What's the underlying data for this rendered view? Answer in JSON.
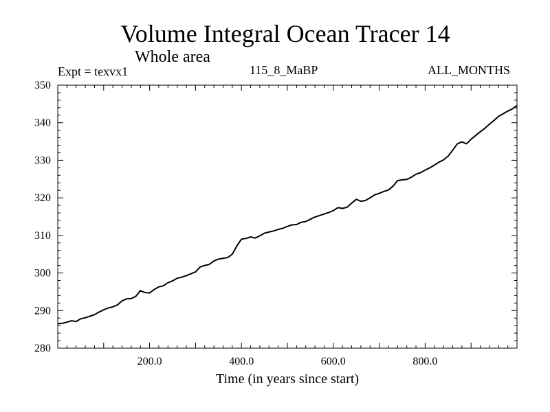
{
  "header": {
    "title": "Volume Integral Ocean Tracer 14",
    "subtitle": "Whole area",
    "experiment": "Expt = texvx1",
    "run_label": "115_8_MaBP",
    "months_label": "ALL_MONTHS"
  },
  "chart_data": {
    "type": "line",
    "title": "Volume Integral Ocean Tracer 14",
    "xlabel": "Time (in years since start)",
    "ylabel": "",
    "xlim": [
      0,
      1000
    ],
    "ylim": [
      280,
      350
    ],
    "x_ticks": [
      200,
      400,
      600,
      800
    ],
    "x_tick_labels": [
      "200.0",
      "400.0",
      "600.0",
      "800.0"
    ],
    "y_ticks": [
      280,
      290,
      300,
      310,
      320,
      330,
      340,
      350
    ],
    "y_tick_labels": [
      "280",
      "290",
      "300",
      "310",
      "320",
      "330",
      "340",
      "350"
    ],
    "grid": false,
    "series": [
      {
        "name": "Ocean Tracer 14",
        "color": "#000000",
        "x": [
          0,
          10,
          20,
          30,
          40,
          50,
          60,
          70,
          80,
          90,
          100,
          110,
          120,
          130,
          140,
          150,
          160,
          170,
          180,
          190,
          200,
          210,
          220,
          230,
          240,
          250,
          260,
          270,
          280,
          290,
          300,
          310,
          320,
          330,
          340,
          350,
          360,
          370,
          380,
          390,
          400,
          410,
          420,
          430,
          440,
          450,
          460,
          470,
          480,
          490,
          500,
          510,
          520,
          530,
          540,
          550,
          560,
          570,
          580,
          590,
          600,
          610,
          620,
          630,
          640,
          650,
          660,
          670,
          680,
          690,
          700,
          710,
          720,
          730,
          740,
          750,
          760,
          770,
          780,
          790,
          800,
          810,
          820,
          830,
          840,
          850,
          860,
          870,
          880,
          890,
          900,
          910,
          920,
          930,
          940,
          950,
          960,
          970,
          980,
          990,
          1000
        ],
        "values": [
          286.5,
          286.6,
          286.9,
          287.3,
          287.1,
          287.8,
          288.1,
          288.5,
          288.9,
          289.6,
          290.2,
          290.7,
          291.0,
          291.5,
          292.6,
          293.1,
          293.2,
          293.8,
          295.3,
          294.8,
          294.7,
          295.6,
          296.3,
          296.6,
          297.4,
          297.9,
          298.6,
          298.9,
          299.3,
          299.8,
          300.3,
          301.6,
          302.0,
          302.3,
          303.2,
          303.7,
          303.9,
          304.1,
          305.0,
          307.2,
          309.0,
          309.2,
          309.6,
          309.3,
          309.9,
          310.6,
          310.9,
          311.2,
          311.6,
          311.9,
          312.4,
          312.8,
          312.9,
          313.5,
          313.7,
          314.3,
          314.9,
          315.3,
          315.7,
          316.1,
          316.6,
          317.4,
          317.2,
          317.5,
          318.6,
          319.6,
          319.1,
          319.3,
          320.0,
          320.8,
          321.2,
          321.7,
          322.1,
          323.1,
          324.6,
          324.8,
          324.9,
          325.5,
          326.3,
          326.7,
          327.4,
          328.0,
          328.7,
          329.5,
          330.1,
          331.1,
          332.7,
          334.4,
          334.9,
          334.4,
          335.6,
          336.6,
          337.6,
          338.5,
          339.6,
          340.6,
          341.7,
          342.4,
          343.1,
          343.7,
          344.6
        ]
      }
    ]
  }
}
